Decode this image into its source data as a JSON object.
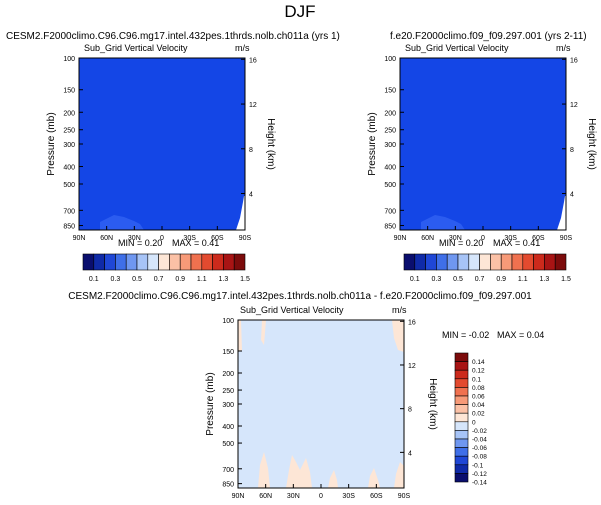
{
  "figure": {
    "title": "DJF"
  },
  "chart_data": [
    {
      "type": "heatmap",
      "title": "CESM2.F2000climo.C96.C96.mg17.intel.432pes.1thrds.nolb.ch011a (yrs 1)",
      "subtitle": "Sub_Grid Vertical Velocity",
      "units": "m/s",
      "ylabel": "Pressure (mb)",
      "y2label": "Height (km)",
      "x_ticks": [
        "90N",
        "60N",
        "30N",
        "0",
        "30S",
        "60S",
        "90S"
      ],
      "y_ticks": [
        "100",
        "150",
        "200",
        "250",
        "300",
        "400",
        "500",
        "700",
        "850"
      ],
      "y2_ticks": [
        "16",
        "12",
        "8",
        "4"
      ],
      "min": 0.2,
      "max": 0.41,
      "min_label": "MIN =  0.20",
      "max_label": "MAX =  0.41"
    },
    {
      "type": "heatmap",
      "title": "f.e20.F2000climo.f09_f09.297.001 (yrs 2-11)",
      "subtitle": "Sub_Grid Vertical Velocity",
      "units": "m/s",
      "ylabel": "Pressure (mb)",
      "y2label": "Height (km)",
      "x_ticks": [
        "90N",
        "60N",
        "30N",
        "0",
        "30S",
        "60S",
        "90S"
      ],
      "y_ticks": [
        "100",
        "150",
        "200",
        "250",
        "300",
        "400",
        "500",
        "700",
        "850"
      ],
      "y2_ticks": [
        "16",
        "12",
        "8",
        "4"
      ],
      "min": 0.2,
      "max": 0.41,
      "min_label": "MIN =  0.20",
      "max_label": "MAX =  0.41"
    },
    {
      "type": "heatmap",
      "title": "CESM2.F2000climo.C96.C96.mg17.intel.432pes.1thrds.nolb.ch011a - f.e20.F2000climo.f09_f09.297.001",
      "subtitle": "Sub_Grid Vertical Velocity",
      "units": "m/s",
      "ylabel": "Pressure (mb)",
      "y2label": "Height (km)",
      "x_ticks": [
        "90N",
        "60N",
        "30N",
        "0",
        "30S",
        "60S",
        "90S"
      ],
      "y_ticks": [
        "100",
        "150",
        "200",
        "250",
        "300",
        "400",
        "500",
        "700",
        "850"
      ],
      "y2_ticks": [
        "16",
        "12",
        "8",
        "4"
      ],
      "min": -0.02,
      "max": 0.04,
      "min_label": "MIN = -0.02",
      "max_label": "MAX =  0.04"
    }
  ],
  "colorbar_top": {
    "labels": [
      "0.1",
      "0.3",
      "0.5",
      "0.7",
      "0.9",
      "1.1",
      "1.3",
      "1.5"
    ],
    "colors": [
      "#0a0e6e",
      "#0f2aa8",
      "#1f47d6",
      "#3f6fe8",
      "#6f97f0",
      "#a7c4f7",
      "#d6e6fb",
      "#fde6d6",
      "#fbc1a6",
      "#f79a78",
      "#f0714f",
      "#e34a2f",
      "#cc2a1c",
      "#a81414",
      "#7c0b0b"
    ]
  },
  "colorbar_diff": {
    "labels": [
      "0.14",
      "0.12",
      "0.1",
      "0.08",
      "0.06",
      "0.04",
      "0.02",
      "0",
      "-0.02",
      "-0.04",
      "-0.06",
      "-0.08",
      "-0.1",
      "-0.12",
      "-0.14"
    ],
    "colors": [
      "#7c0b0b",
      "#a81414",
      "#cc2a1c",
      "#e34a2f",
      "#f0714f",
      "#f79a78",
      "#fbc1a6",
      "#fde6d6",
      "#d6e6fb",
      "#a7c4f7",
      "#6f97f0",
      "#3f6fe8",
      "#1f47d6",
      "#0f2aa8",
      "#0a0e6e"
    ]
  },
  "colors": {
    "field_top": "#1446e6",
    "field_diff": "#d6e6fb",
    "diff_positive": "#fde6d6",
    "white": "#ffffff"
  }
}
